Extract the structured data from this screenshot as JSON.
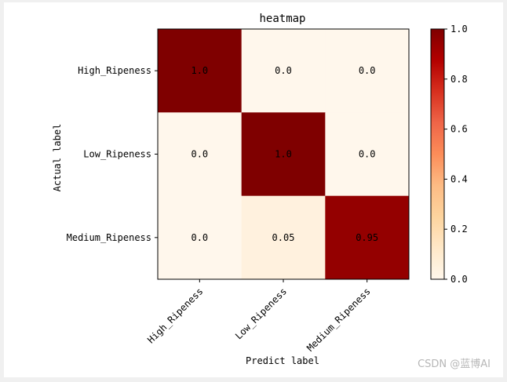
{
  "chart_data": {
    "type": "heatmap",
    "title": "heatmap",
    "xlabel": "Predict label",
    "ylabel": "Actual label",
    "x_categories": [
      "High_Ripeness",
      "Low_Ripeness",
      "Medium_Ripeness"
    ],
    "y_categories": [
      "High_Ripeness",
      "Low_Ripeness",
      "Medium_Ripeness"
    ],
    "values": [
      [
        1.0,
        0.0,
        0.0
      ],
      [
        0.0,
        1.0,
        0.0
      ],
      [
        0.0,
        0.05,
        0.95
      ]
    ],
    "cell_labels": [
      [
        "1.0",
        "0.0",
        "0.0"
      ],
      [
        "0.0",
        "1.0",
        "0.0"
      ],
      [
        "0.0",
        "0.05",
        "0.95"
      ]
    ],
    "colormap": "OrRd",
    "colorbar": {
      "range": [
        0.0,
        1.0
      ],
      "ticks": [
        0.0,
        0.2,
        0.4,
        0.6,
        0.8,
        1.0
      ],
      "tick_labels": [
        "0.0",
        "0.2",
        "0.4",
        "0.6",
        "0.8",
        "1.0"
      ]
    }
  },
  "watermark": "CSDN @蓝博AI"
}
